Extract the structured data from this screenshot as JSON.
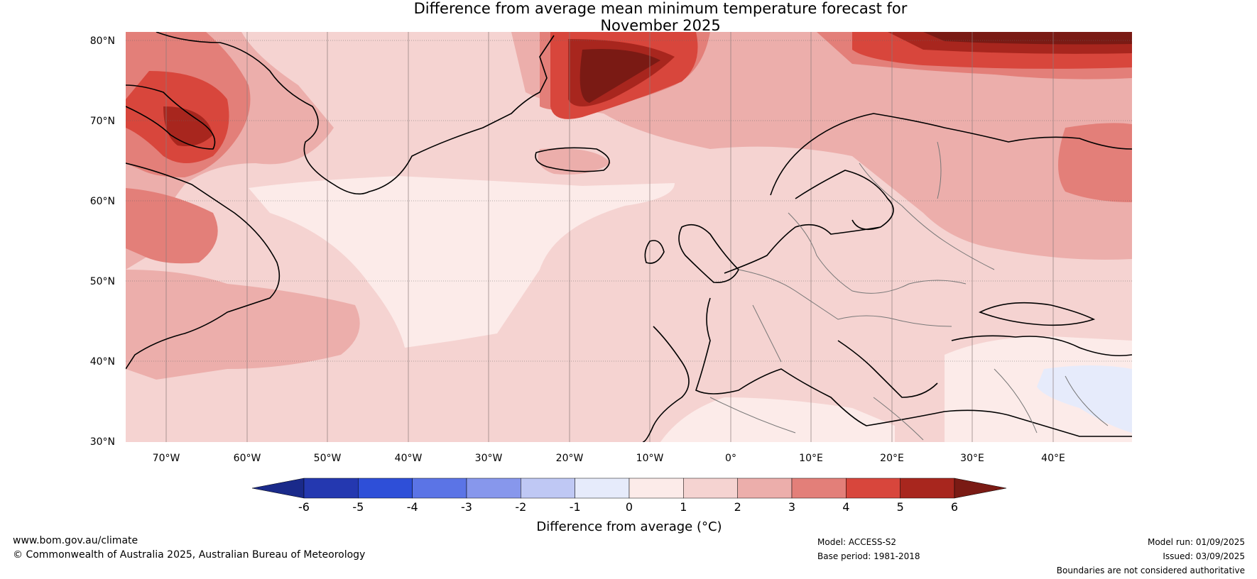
{
  "title": {
    "line1": "Difference from average mean minimum temperature forecast for",
    "line2": "November 2025"
  },
  "map": {
    "lat_labels": [
      "80°N",
      "70°N",
      "60°N",
      "50°N",
      "40°N",
      "30°N"
    ],
    "lon_labels": [
      "70°W",
      "60°W",
      "50°W",
      "40°W",
      "30°W",
      "20°W",
      "10°W",
      "0°",
      "10°E",
      "20°E",
      "30°E",
      "40°E"
    ]
  },
  "colorbar": {
    "ticks": [
      "-6",
      "-5",
      "-4",
      "-3",
      "-2",
      "-1",
      "0",
      "1",
      "2",
      "3",
      "4",
      "5",
      "6"
    ],
    "colors": [
      "#1a2a8a",
      "#2438b0",
      "#2e4fd8",
      "#5b74e6",
      "#8797ec",
      "#bfc8f4",
      "#e6ebfb",
      "#fcebe9",
      "#f5d3d1",
      "#ecaeab",
      "#e37f79",
      "#d8463c",
      "#a8261e",
      "#7a1a14"
    ],
    "label": "Difference from average (°C)"
  },
  "footer": {
    "website": "www.bom.gov.au/climate",
    "copyright": "© Commonwealth of Australia 2025, Australian Bureau of Meteorology",
    "model": "Model: ACCESS-S2",
    "base_period": "Base period: 1981-2018",
    "model_run": "Model run: 01/09/2025",
    "issued": "Issued: 03/09/2025",
    "disclaimer": "Boundaries are not considered authoritative"
  }
}
